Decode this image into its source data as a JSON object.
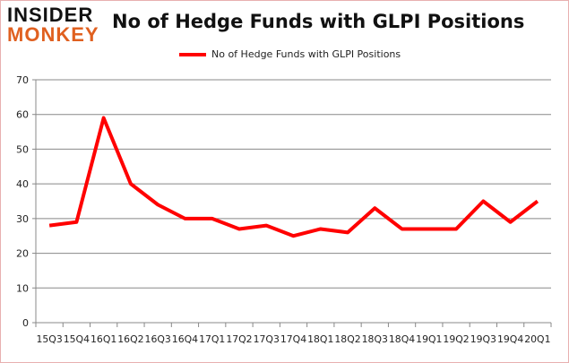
{
  "logo": {
    "line1": "INSIDER",
    "line2": "MONKEY"
  },
  "chart_data": {
    "type": "line",
    "title": "No of Hedge Funds with GLPI Positions",
    "categories": [
      "15Q3",
      "15Q4",
      "16Q1",
      "16Q2",
      "16Q3",
      "16Q4",
      "17Q1",
      "17Q2",
      "17Q3",
      "17Q4",
      "18Q1",
      "18Q2",
      "18Q3",
      "18Q4",
      "19Q1",
      "19Q2",
      "19Q3",
      "19Q4",
      "20Q1"
    ],
    "series": [
      {
        "name": "No of Hedge Funds with GLPI Positions",
        "color": "#ff0000",
        "values": [
          28,
          29,
          59,
          40,
          34,
          30,
          30,
          27,
          28,
          25,
          27,
          26,
          33,
          27,
          27,
          27,
          35,
          29,
          35
        ]
      }
    ],
    "ylim": [
      0,
      70
    ],
    "yticks": [
      0,
      10,
      20,
      30,
      40,
      50,
      60,
      70
    ],
    "grid": true,
    "legend": "top-center",
    "xlabel": "",
    "ylabel": ""
  }
}
